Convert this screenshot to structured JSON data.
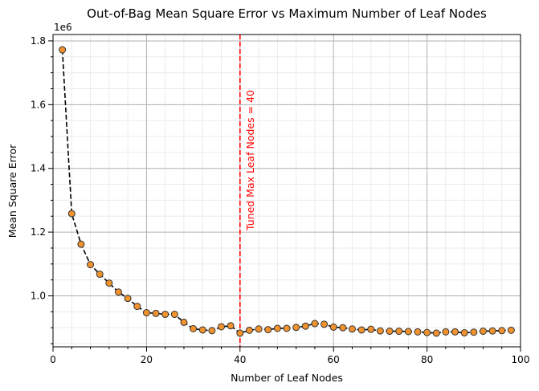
{
  "chart_data": {
    "type": "scatter",
    "title": "Out-of-Bag Mean Square Error vs Maximum Number of Leaf Nodes",
    "xlabel": "Number of Leaf Nodes",
    "ylabel": "Mean Square Error",
    "y_offset_label": "1e6",
    "xlim": [
      0,
      100
    ],
    "ylim": [
      0.84,
      1.82
    ],
    "x_ticks": [
      0,
      20,
      40,
      60,
      80,
      100
    ],
    "x_tick_labels": [
      "0",
      "20",
      "40",
      "60",
      "80",
      "100"
    ],
    "y_ticks": [
      1.0,
      1.2,
      1.4,
      1.6,
      1.8
    ],
    "y_tick_labels": [
      "1.0",
      "1.2",
      "1.4",
      "1.6",
      "1.8"
    ],
    "grid": true,
    "series": [
      {
        "line_style": "dashed",
        "line_color": "#000000",
        "marker_fill": "#f0922e",
        "marker_edge": "#333333",
        "x": [
          2,
          4,
          6,
          8,
          10,
          12,
          14,
          16,
          18,
          20,
          22,
          24,
          26,
          28,
          30,
          32,
          34,
          36,
          38,
          40,
          42,
          44,
          46,
          48,
          50,
          52,
          54,
          56,
          58,
          60,
          62,
          64,
          66,
          68,
          70,
          72,
          74,
          76,
          78,
          80,
          82,
          84,
          86,
          88,
          90,
          92,
          94,
          96,
          98
        ],
        "y": [
          1.772,
          1.258,
          1.162,
          1.098,
          1.068,
          1.04,
          1.012,
          0.992,
          0.967,
          0.947,
          0.945,
          0.942,
          0.942,
          0.917,
          0.897,
          0.893,
          0.891,
          0.903,
          0.906,
          0.883,
          0.892,
          0.896,
          0.894,
          0.898,
          0.898,
          0.901,
          0.905,
          0.913,
          0.911,
          0.902,
          0.9,
          0.896,
          0.893,
          0.895,
          0.89,
          0.889,
          0.889,
          0.888,
          0.887,
          0.885,
          0.883,
          0.887,
          0.887,
          0.884,
          0.886,
          0.889,
          0.89,
          0.891,
          0.892
        ]
      }
    ],
    "vline": {
      "x": 40,
      "color": "#ff0000",
      "style": "dashed",
      "label": "Tuned Max Leaf Nodes = 40"
    }
  }
}
